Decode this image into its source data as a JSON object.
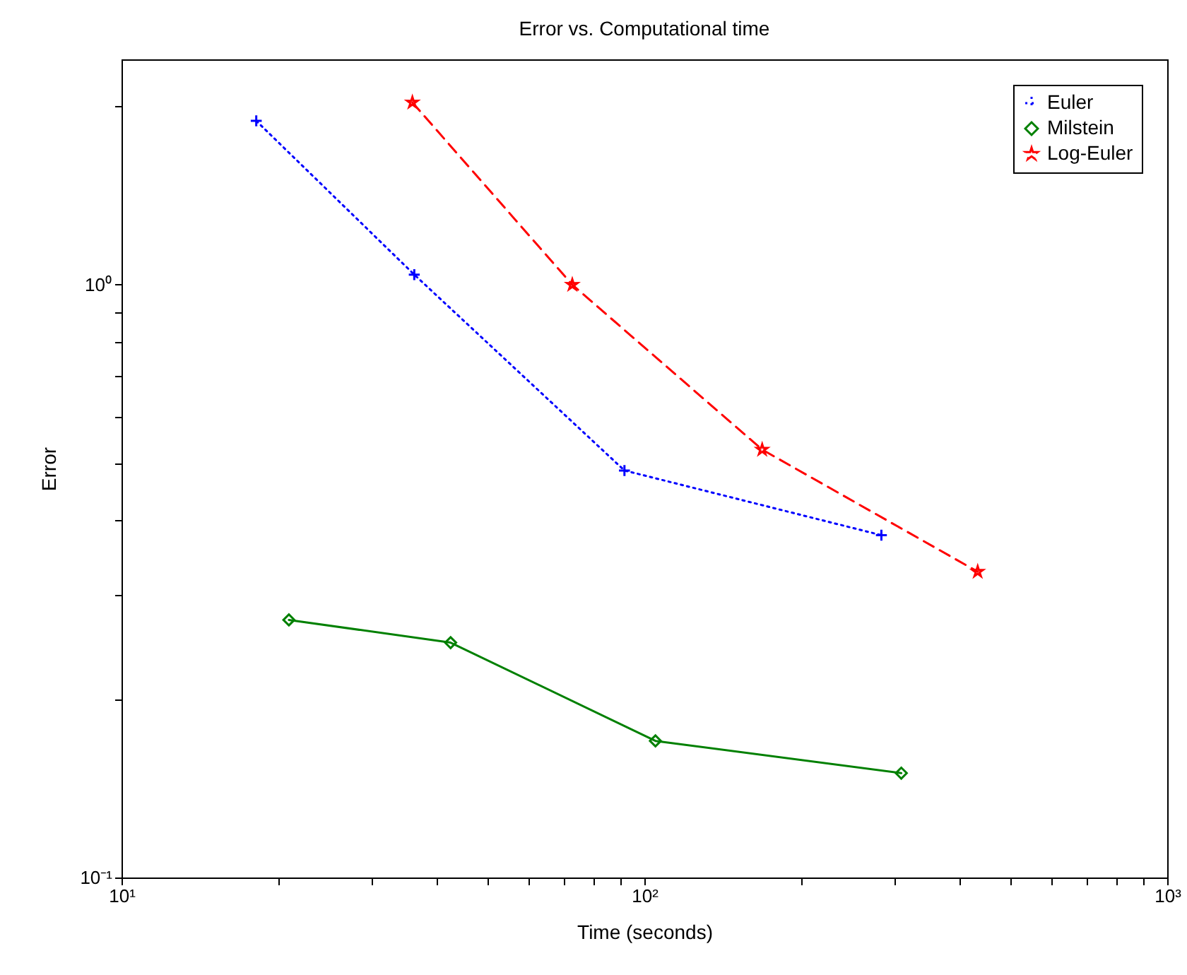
{
  "chart_data": {
    "type": "line",
    "title": "Error vs. Computational time",
    "xlabel": "Time (seconds)",
    "ylabel": "Error",
    "log": "xy",
    "grid": false,
    "legend": "top right",
    "xlim": [
      10,
      1000
    ],
    "ylim": [
      0.1,
      2.4
    ],
    "xticks": [
      {
        "value": 10,
        "label": "10¹"
      },
      {
        "value": 20,
        "label": null
      },
      {
        "value": 30,
        "label": null
      },
      {
        "value": 40,
        "label": null
      },
      {
        "value": 50,
        "label": null
      },
      {
        "value": 60,
        "label": null
      },
      {
        "value": 70,
        "label": null
      },
      {
        "value": 80,
        "label": null
      },
      {
        "value": 90,
        "label": null
      },
      {
        "value": 100,
        "label": "10²"
      },
      {
        "value": 200,
        "label": null
      },
      {
        "value": 300,
        "label": null
      },
      {
        "value": 400,
        "label": null
      },
      {
        "value": 500,
        "label": null
      },
      {
        "value": 600,
        "label": null
      },
      {
        "value": 700,
        "label": null
      },
      {
        "value": 800,
        "label": null
      },
      {
        "value": 900,
        "label": null
      },
      {
        "value": 1000,
        "label": "10³"
      }
    ],
    "yticks": [
      {
        "value": 0.1,
        "label": "10⁻¹"
      },
      {
        "value": 0.2,
        "label": null
      },
      {
        "value": 0.3,
        "label": null
      },
      {
        "value": 0.4,
        "label": null
      },
      {
        "value": 0.5,
        "label": null
      },
      {
        "value": 0.6,
        "label": null
      },
      {
        "value": 0.7,
        "label": null
      },
      {
        "value": 0.8,
        "label": null
      },
      {
        "value": 0.9,
        "label": null
      },
      {
        "value": 1,
        "label": "10⁰"
      },
      {
        "value": 2,
        "label": null
      }
    ],
    "series": [
      {
        "name": "Euler",
        "color": "#0000ff",
        "marker": "cross",
        "line_style": "dotted",
        "x": [
          18.1,
          36.3,
          91.6,
          284
        ],
        "values": [
          1.89,
          1.04,
          0.486,
          0.378
        ]
      },
      {
        "name": "Milstein",
        "color": "#008000",
        "marker": "diamond",
        "line_style": "solid",
        "x": [
          20.9,
          42.6,
          105,
          310
        ],
        "values": [
          0.272,
          0.249,
          0.17,
          0.15
        ]
      },
      {
        "name": "Log-Euler",
        "color": "#ff0000",
        "marker": "star",
        "line_style": "dashed",
        "x": [
          36,
          72.8,
          168,
          434
        ],
        "values": [
          2.03,
          1,
          0.527,
          0.328
        ]
      }
    ]
  }
}
